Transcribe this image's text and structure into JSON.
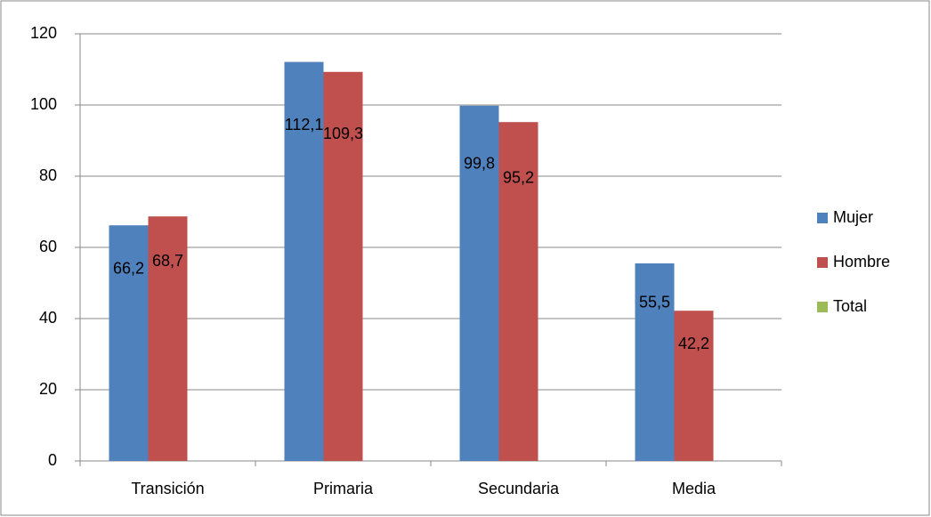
{
  "chart_data": {
    "type": "bar",
    "categories": [
      "Transición",
      "Primaria",
      "Secundaria",
      "Media"
    ],
    "series": [
      {
        "name": "Mujer",
        "color": "#4f81bd",
        "values": [
          66.2,
          112.1,
          99.8,
          55.5
        ],
        "value_labels": [
          "66,2",
          "112,1",
          "99,8",
          "55,5"
        ]
      },
      {
        "name": "Hombre",
        "color": "#c0504d",
        "values": [
          68.7,
          109.3,
          95.2,
          42.2
        ],
        "value_labels": [
          "68,7",
          "109,3",
          "95,2",
          "42,2"
        ]
      },
      {
        "name": "Total",
        "color": "#9bbb59",
        "values": [
          null,
          null,
          null,
          null
        ]
      }
    ],
    "ylim": [
      0,
      120
    ],
    "yticks": [
      0,
      20,
      40,
      60,
      80,
      100,
      120
    ],
    "grid": true,
    "legend": "right"
  }
}
